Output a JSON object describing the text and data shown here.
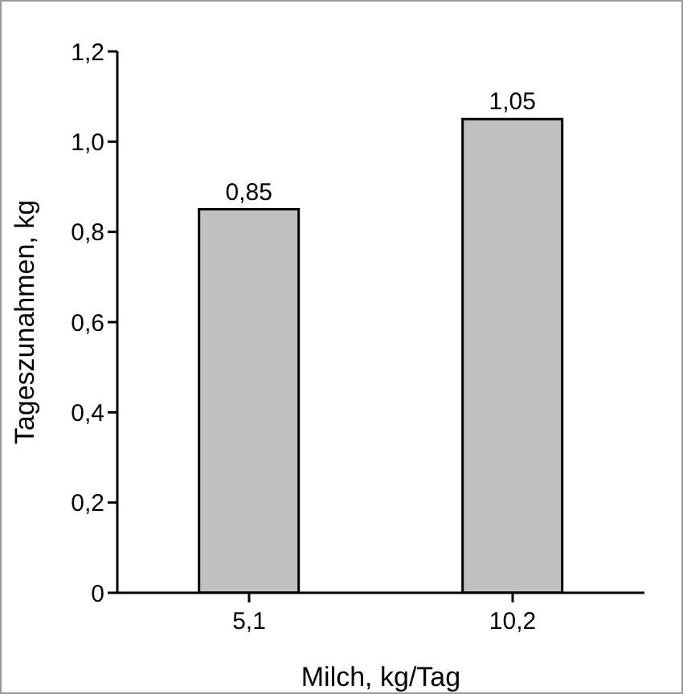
{
  "chart_data": {
    "type": "bar",
    "xlabel": "Milch, kg/Tag",
    "ylabel": "Tageszunahmen, kg",
    "categories": [
      "5,1",
      "10,2"
    ],
    "values": [
      0.85,
      1.05
    ],
    "color": "#c0c0c0",
    "value_labels": [
      "0,85",
      "1,05"
    ],
    "ylim": [
      0,
      1.2
    ],
    "yticks": [
      0,
      {
        "value": 0.2,
        "label": "0,2"
      },
      {
        "value": 0.4,
        "label": "0,4"
      },
      {
        "value": 0.6,
        "label": "0,6"
      },
      {
        "value": 0.8,
        "label": "0,8"
      },
      {
        "value": 1.0,
        "label": "1,0"
      },
      {
        "value": 1.2,
        "label": "1,2"
      }
    ],
    "grid": false,
    "legend": false
  }
}
